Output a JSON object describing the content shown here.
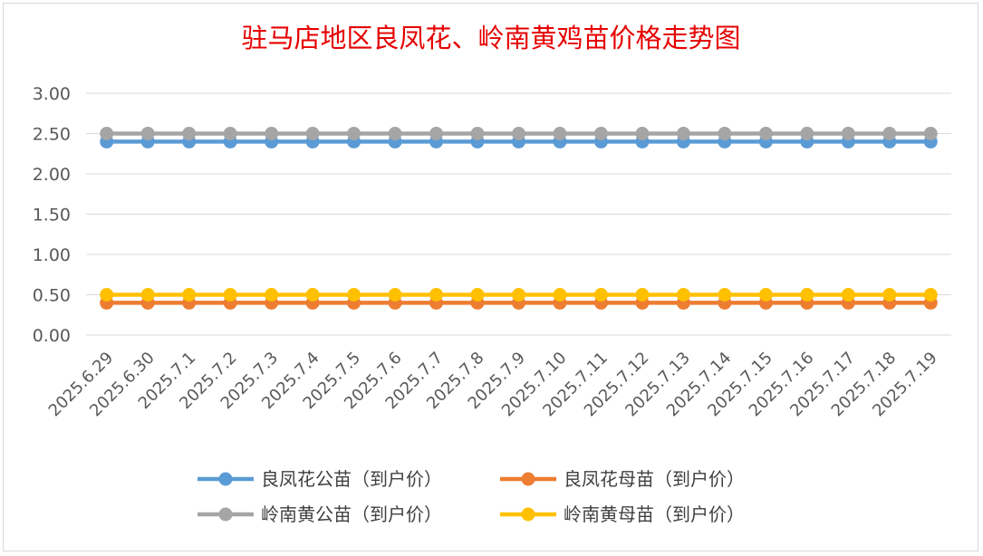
{
  "chart_data": {
    "type": "line",
    "title": "驻马店地区良凤花、岭南黄鸡苗价格走势图",
    "xlabel": "",
    "ylabel": "",
    "ylim": [
      0,
      3
    ],
    "yticks": [
      "0.00",
      "0.50",
      "1.00",
      "1.50",
      "2.00",
      "2.50",
      "3.00"
    ],
    "grid": true,
    "legend_position": "bottom",
    "categories": [
      "2025.6.29",
      "2025.6.30",
      "2025.7.1",
      "2025.7.2",
      "2025.7.3",
      "2025.7.4",
      "2025.7.5",
      "2025.7.6",
      "2025.7.7",
      "2025.7.8",
      "2025.7.9",
      "2025.7.10",
      "2025.7.11",
      "2025.7.12",
      "2025.7.13",
      "2025.7.14",
      "2025.7.15",
      "2025.7.16",
      "2025.7.17",
      "2025.7.18",
      "2025.7.19"
    ],
    "series": [
      {
        "name": "良凤花公苗（到户价）",
        "color": "#5b9bd5",
        "values": [
          2.4,
          2.4,
          2.4,
          2.4,
          2.4,
          2.4,
          2.4,
          2.4,
          2.4,
          2.4,
          2.4,
          2.4,
          2.4,
          2.4,
          2.4,
          2.4,
          2.4,
          2.4,
          2.4,
          2.4,
          2.4
        ]
      },
      {
        "name": "良凤花母苗（到户价）",
        "color": "#ed7d31",
        "values": [
          0.4,
          0.4,
          0.4,
          0.4,
          0.4,
          0.4,
          0.4,
          0.4,
          0.4,
          0.4,
          0.4,
          0.4,
          0.4,
          0.4,
          0.4,
          0.4,
          0.4,
          0.4,
          0.4,
          0.4,
          0.4
        ]
      },
      {
        "name": "岭南黄公苗（到户价）",
        "color": "#a5a5a5",
        "values": [
          2.5,
          2.5,
          2.5,
          2.5,
          2.5,
          2.5,
          2.5,
          2.5,
          2.5,
          2.5,
          2.5,
          2.5,
          2.5,
          2.5,
          2.5,
          2.5,
          2.5,
          2.5,
          2.5,
          2.5,
          2.5
        ]
      },
      {
        "name": "岭南黄母苗（到户价）",
        "color": "#ffc000",
        "values": [
          0.5,
          0.5,
          0.5,
          0.5,
          0.5,
          0.5,
          0.5,
          0.5,
          0.5,
          0.5,
          0.5,
          0.5,
          0.5,
          0.5,
          0.5,
          0.5,
          0.5,
          0.5,
          0.5,
          0.5,
          0.5
        ]
      }
    ]
  }
}
